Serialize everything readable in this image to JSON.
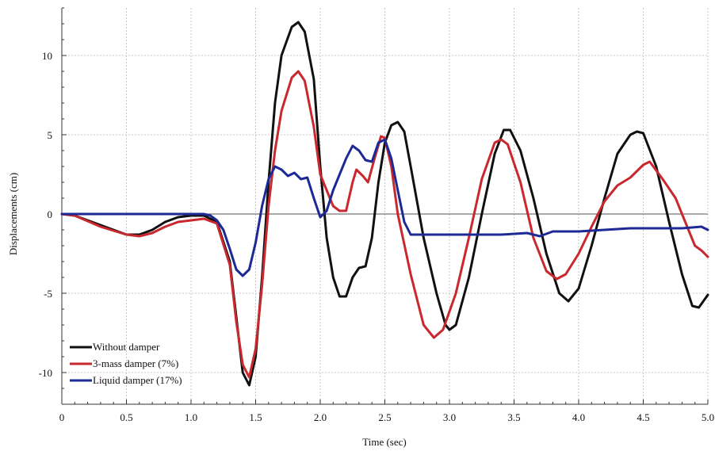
{
  "chart_data": {
    "type": "line",
    "title": "",
    "xlabel": "Time (sec)",
    "ylabel": "Displacements (cm)",
    "xlim": [
      0,
      5.0
    ],
    "ylim": [
      -12,
      13
    ],
    "x_ticks": [
      0,
      0.5,
      1.0,
      1.5,
      2.0,
      2.5,
      3.0,
      3.5,
      4.0,
      4.5,
      5.0
    ],
    "x_tick_labels": [
      "0",
      "0.5",
      "1.0",
      "1.5",
      "2.0",
      "2.5",
      "3.0",
      "3.5",
      "4.0",
      "4.5",
      "5.0"
    ],
    "y_ticks": [
      -10,
      -5,
      0,
      5,
      10
    ],
    "y_tick_labels": [
      "-10",
      "-5",
      "0",
      "5",
      "10"
    ],
    "grid": true,
    "legend_position": "bottom-left",
    "series": [
      {
        "name": "Without damper",
        "color": "#111111",
        "points": [
          [
            0,
            0
          ],
          [
            0.1,
            -0.1
          ],
          [
            0.3,
            -0.7
          ],
          [
            0.5,
            -1.3
          ],
          [
            0.6,
            -1.3
          ],
          [
            0.7,
            -1.0
          ],
          [
            0.8,
            -0.5
          ],
          [
            0.9,
            -0.2
          ],
          [
            1.0,
            -0.1
          ],
          [
            1.1,
            -0.1
          ],
          [
            1.2,
            -0.5
          ],
          [
            1.3,
            -3.0
          ],
          [
            1.35,
            -6.5
          ],
          [
            1.4,
            -10.0
          ],
          [
            1.45,
            -10.8
          ],
          [
            1.5,
            -9.0
          ],
          [
            1.55,
            -4.0
          ],
          [
            1.6,
            2.0
          ],
          [
            1.65,
            7.0
          ],
          [
            1.7,
            10.0
          ],
          [
            1.78,
            11.8
          ],
          [
            1.83,
            12.1
          ],
          [
            1.88,
            11.5
          ],
          [
            1.95,
            8.5
          ],
          [
            2.0,
            3.0
          ],
          [
            2.05,
            -1.5
          ],
          [
            2.1,
            -4.0
          ],
          [
            2.15,
            -5.2
          ],
          [
            2.2,
            -5.2
          ],
          [
            2.25,
            -4.0
          ],
          [
            2.3,
            -3.4
          ],
          [
            2.35,
            -3.3
          ],
          [
            2.4,
            -1.5
          ],
          [
            2.45,
            2.0
          ],
          [
            2.5,
            4.5
          ],
          [
            2.55,
            5.6
          ],
          [
            2.6,
            5.8
          ],
          [
            2.65,
            5.2
          ],
          [
            2.7,
            3.0
          ],
          [
            2.8,
            -1.5
          ],
          [
            2.9,
            -5.0
          ],
          [
            2.97,
            -7.0
          ],
          [
            3.0,
            -7.3
          ],
          [
            3.05,
            -7.0
          ],
          [
            3.15,
            -4.0
          ],
          [
            3.25,
            0.0
          ],
          [
            3.35,
            3.8
          ],
          [
            3.42,
            5.3
          ],
          [
            3.47,
            5.3
          ],
          [
            3.55,
            4.0
          ],
          [
            3.65,
            1.0
          ],
          [
            3.75,
            -2.5
          ],
          [
            3.85,
            -5.0
          ],
          [
            3.92,
            -5.5
          ],
          [
            4.0,
            -4.7
          ],
          [
            4.1,
            -2.0
          ],
          [
            4.2,
            1.0
          ],
          [
            4.3,
            3.8
          ],
          [
            4.4,
            5.0
          ],
          [
            4.45,
            5.2
          ],
          [
            4.5,
            5.1
          ],
          [
            4.6,
            3.0
          ],
          [
            4.7,
            -0.5
          ],
          [
            4.8,
            -3.8
          ],
          [
            4.88,
            -5.8
          ],
          [
            4.93,
            -5.9
          ],
          [
            5.0,
            -5.1
          ]
        ]
      },
      {
        "name": "3-mass damper (7%)",
        "color": "#c8282e",
        "points": [
          [
            0,
            0
          ],
          [
            0.1,
            -0.1
          ],
          [
            0.3,
            -0.8
          ],
          [
            0.5,
            -1.3
          ],
          [
            0.6,
            -1.4
          ],
          [
            0.7,
            -1.2
          ],
          [
            0.8,
            -0.8
          ],
          [
            0.9,
            -0.5
          ],
          [
            1.0,
            -0.4
          ],
          [
            1.1,
            -0.3
          ],
          [
            1.2,
            -0.6
          ],
          [
            1.3,
            -3.2
          ],
          [
            1.35,
            -6.8
          ],
          [
            1.4,
            -9.5
          ],
          [
            1.45,
            -10.3
          ],
          [
            1.5,
            -8.5
          ],
          [
            1.55,
            -4.5
          ],
          [
            1.6,
            0.5
          ],
          [
            1.65,
            4.0
          ],
          [
            1.7,
            6.5
          ],
          [
            1.78,
            8.6
          ],
          [
            1.83,
            9.0
          ],
          [
            1.88,
            8.4
          ],
          [
            1.95,
            5.5
          ],
          [
            2.0,
            2.5
          ],
          [
            2.05,
            1.5
          ],
          [
            2.1,
            0.5
          ],
          [
            2.15,
            0.2
          ],
          [
            2.2,
            0.2
          ],
          [
            2.25,
            2.0
          ],
          [
            2.28,
            2.8
          ],
          [
            2.33,
            2.4
          ],
          [
            2.37,
            2.0
          ],
          [
            2.42,
            3.5
          ],
          [
            2.47,
            4.9
          ],
          [
            2.5,
            4.8
          ],
          [
            2.55,
            3.0
          ],
          [
            2.6,
            0.0
          ],
          [
            2.7,
            -3.8
          ],
          [
            2.8,
            -7.0
          ],
          [
            2.88,
            -7.8
          ],
          [
            2.95,
            -7.3
          ],
          [
            3.05,
            -5.0
          ],
          [
            3.15,
            -1.5
          ],
          [
            3.25,
            2.2
          ],
          [
            3.35,
            4.5
          ],
          [
            3.4,
            4.7
          ],
          [
            3.45,
            4.4
          ],
          [
            3.55,
            2.0
          ],
          [
            3.65,
            -1.5
          ],
          [
            3.75,
            -3.6
          ],
          [
            3.83,
            -4.1
          ],
          [
            3.9,
            -3.8
          ],
          [
            4.0,
            -2.5
          ],
          [
            4.1,
            -0.8
          ],
          [
            4.2,
            0.8
          ],
          [
            4.3,
            1.8
          ],
          [
            4.4,
            2.3
          ],
          [
            4.5,
            3.1
          ],
          [
            4.55,
            3.3
          ],
          [
            4.65,
            2.2
          ],
          [
            4.75,
            1.0
          ],
          [
            4.8,
            0.0
          ],
          [
            4.85,
            -1.0
          ],
          [
            4.9,
            -2.0
          ],
          [
            4.95,
            -2.3
          ],
          [
            5.0,
            -2.7
          ]
        ]
      },
      {
        "name": "Liquid damper (17%)",
        "color": "#1d2a96",
        "points": [
          [
            0,
            0
          ],
          [
            0.5,
            0
          ],
          [
            1.0,
            0
          ],
          [
            1.1,
            0
          ],
          [
            1.15,
            -0.1
          ],
          [
            1.2,
            -0.4
          ],
          [
            1.25,
            -1.0
          ],
          [
            1.3,
            -2.2
          ],
          [
            1.35,
            -3.5
          ],
          [
            1.4,
            -3.9
          ],
          [
            1.45,
            -3.5
          ],
          [
            1.5,
            -1.8
          ],
          [
            1.55,
            0.5
          ],
          [
            1.6,
            2.2
          ],
          [
            1.65,
            3.0
          ],
          [
            1.7,
            2.8
          ],
          [
            1.75,
            2.4
          ],
          [
            1.8,
            2.6
          ],
          [
            1.85,
            2.2
          ],
          [
            1.9,
            2.3
          ],
          [
            1.95,
            1.0
          ],
          [
            2.0,
            -0.2
          ],
          [
            2.05,
            0.2
          ],
          [
            2.1,
            1.5
          ],
          [
            2.2,
            3.5
          ],
          [
            2.25,
            4.3
          ],
          [
            2.3,
            4.0
          ],
          [
            2.35,
            3.4
          ],
          [
            2.4,
            3.3
          ],
          [
            2.45,
            4.5
          ],
          [
            2.5,
            4.7
          ],
          [
            2.55,
            3.5
          ],
          [
            2.6,
            1.5
          ],
          [
            2.65,
            -0.5
          ],
          [
            2.7,
            -1.3
          ],
          [
            2.8,
            -1.3
          ],
          [
            3.0,
            -1.3
          ],
          [
            3.2,
            -1.3
          ],
          [
            3.4,
            -1.3
          ],
          [
            3.6,
            -1.2
          ],
          [
            3.7,
            -1.4
          ],
          [
            3.8,
            -1.1
          ],
          [
            4.0,
            -1.1
          ],
          [
            4.2,
            -1.0
          ],
          [
            4.4,
            -0.9
          ],
          [
            4.6,
            -0.9
          ],
          [
            4.8,
            -0.9
          ],
          [
            4.95,
            -0.8
          ],
          [
            5.0,
            -1.0
          ]
        ]
      }
    ]
  }
}
